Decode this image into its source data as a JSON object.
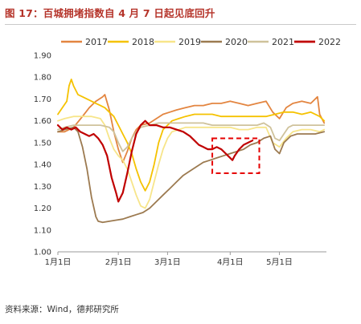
{
  "figure": {
    "title": "图 17：百城拥堵指数自 4 月 7 日起见底回升",
    "source": "资料来源：Wind，德邦研究所"
  },
  "colors": {
    "title": "#b5342a",
    "highlight_box": "#e60000"
  },
  "chart_data": {
    "type": "line",
    "title": "",
    "xlabel": "",
    "ylabel": "",
    "ylim": [
      1.0,
      1.9
    ],
    "xlim": [
      1,
      121
    ],
    "y_ticks": [
      "1.00",
      "1.10",
      "1.20",
      "1.30",
      "1.40",
      "1.50",
      "1.60",
      "1.70",
      "1.80",
      "1.90"
    ],
    "x_ticks": [
      {
        "label": "1月1日",
        "x": 1
      },
      {
        "label": "2月1日",
        "x": 28
      },
      {
        "label": "3月1日",
        "x": 50
      },
      {
        "label": "4月1日",
        "x": 78
      },
      {
        "label": "5月1日",
        "x": 100
      }
    ],
    "legend": {
      "position": "top"
    },
    "grid": false,
    "highlight_region": {
      "x": [
        70,
        91
      ],
      "y": [
        1.36,
        1.52
      ]
    },
    "series": [
      {
        "name": "2017",
        "color": "#e38540",
        "width": 1.8,
        "points": [
          [
            1,
            1.55
          ],
          [
            4,
            1.55
          ],
          [
            8,
            1.57
          ],
          [
            12,
            1.62
          ],
          [
            15,
            1.66
          ],
          [
            18,
            1.69
          ],
          [
            21,
            1.71
          ],
          [
            22,
            1.72
          ],
          [
            24,
            1.65
          ],
          [
            26,
            1.55
          ],
          [
            28,
            1.47
          ],
          [
            30,
            1.41
          ],
          [
            32,
            1.46
          ],
          [
            34,
            1.52
          ],
          [
            36,
            1.56
          ],
          [
            38,
            1.58
          ],
          [
            42,
            1.59
          ],
          [
            45,
            1.61
          ],
          [
            48,
            1.63
          ],
          [
            51,
            1.64
          ],
          [
            54,
            1.65
          ],
          [
            58,
            1.66
          ],
          [
            62,
            1.67
          ],
          [
            66,
            1.67
          ],
          [
            70,
            1.68
          ],
          [
            74,
            1.68
          ],
          [
            78,
            1.69
          ],
          [
            82,
            1.68
          ],
          [
            86,
            1.67
          ],
          [
            90,
            1.68
          ],
          [
            94,
            1.69
          ],
          [
            97,
            1.64
          ],
          [
            100,
            1.61
          ],
          [
            103,
            1.66
          ],
          [
            106,
            1.68
          ],
          [
            110,
            1.69
          ],
          [
            114,
            1.68
          ],
          [
            117,
            1.71
          ],
          [
            118,
            1.63
          ],
          [
            120,
            1.59
          ]
        ]
      },
      {
        "name": "2018",
        "color": "#f5c200",
        "width": 1.8,
        "points": [
          [
            1,
            1.63
          ],
          [
            3,
            1.66
          ],
          [
            5,
            1.69
          ],
          [
            6,
            1.76
          ],
          [
            7,
            1.79
          ],
          [
            8,
            1.76
          ],
          [
            10,
            1.72
          ],
          [
            12,
            1.71
          ],
          [
            14,
            1.7
          ],
          [
            16,
            1.69
          ],
          [
            18,
            1.68
          ],
          [
            20,
            1.67
          ],
          [
            22,
            1.66
          ],
          [
            24,
            1.64
          ],
          [
            26,
            1.62
          ],
          [
            28,
            1.58
          ],
          [
            30,
            1.54
          ],
          [
            32,
            1.5
          ],
          [
            34,
            1.45
          ],
          [
            36,
            1.38
          ],
          [
            38,
            1.32
          ],
          [
            40,
            1.28
          ],
          [
            42,
            1.32
          ],
          [
            44,
            1.4
          ],
          [
            46,
            1.5
          ],
          [
            48,
            1.56
          ],
          [
            50,
            1.58
          ],
          [
            52,
            1.6
          ],
          [
            55,
            1.61
          ],
          [
            58,
            1.62
          ],
          [
            62,
            1.63
          ],
          [
            66,
            1.63
          ],
          [
            70,
            1.63
          ],
          [
            74,
            1.62
          ],
          [
            78,
            1.62
          ],
          [
            82,
            1.62
          ],
          [
            86,
            1.62
          ],
          [
            90,
            1.62
          ],
          [
            94,
            1.62
          ],
          [
            98,
            1.63
          ],
          [
            102,
            1.64
          ],
          [
            106,
            1.64
          ],
          [
            110,
            1.63
          ],
          [
            114,
            1.64
          ],
          [
            118,
            1.62
          ],
          [
            120,
            1.6
          ]
        ]
      },
      {
        "name": "2019",
        "color": "#f7e58a",
        "width": 1.8,
        "points": [
          [
            1,
            1.6
          ],
          [
            4,
            1.61
          ],
          [
            8,
            1.62
          ],
          [
            12,
            1.62
          ],
          [
            16,
            1.62
          ],
          [
            20,
            1.61
          ],
          [
            22,
            1.58
          ],
          [
            24,
            1.52
          ],
          [
            26,
            1.47
          ],
          [
            28,
            1.44
          ],
          [
            30,
            1.42
          ],
          [
            32,
            1.38
          ],
          [
            34,
            1.32
          ],
          [
            36,
            1.26
          ],
          [
            38,
            1.21
          ],
          [
            40,
            1.2
          ],
          [
            42,
            1.24
          ],
          [
            44,
            1.32
          ],
          [
            46,
            1.4
          ],
          [
            48,
            1.47
          ],
          [
            50,
            1.52
          ],
          [
            52,
            1.55
          ],
          [
            55,
            1.56
          ],
          [
            58,
            1.57
          ],
          [
            62,
            1.57
          ],
          [
            66,
            1.57
          ],
          [
            70,
            1.57
          ],
          [
            74,
            1.57
          ],
          [
            78,
            1.57
          ],
          [
            82,
            1.56
          ],
          [
            86,
            1.56
          ],
          [
            90,
            1.57
          ],
          [
            94,
            1.57
          ],
          [
            97,
            1.5
          ],
          [
            100,
            1.48
          ],
          [
            103,
            1.52
          ],
          [
            106,
            1.55
          ],
          [
            110,
            1.56
          ],
          [
            114,
            1.56
          ],
          [
            118,
            1.55
          ],
          [
            120,
            1.56
          ]
        ]
      },
      {
        "name": "2020",
        "color": "#9c7a50",
        "width": 1.8,
        "points": [
          [
            1,
            1.55
          ],
          [
            4,
            1.56
          ],
          [
            8,
            1.57
          ],
          [
            10,
            1.55
          ],
          [
            12,
            1.48
          ],
          [
            14,
            1.38
          ],
          [
            16,
            1.25
          ],
          [
            18,
            1.16
          ],
          [
            19,
            1.14
          ],
          [
            21,
            1.135
          ],
          [
            24,
            1.14
          ],
          [
            27,
            1.145
          ],
          [
            30,
            1.15
          ],
          [
            33,
            1.16
          ],
          [
            36,
            1.17
          ],
          [
            39,
            1.18
          ],
          [
            42,
            1.2
          ],
          [
            45,
            1.23
          ],
          [
            48,
            1.26
          ],
          [
            51,
            1.29
          ],
          [
            54,
            1.32
          ],
          [
            57,
            1.35
          ],
          [
            60,
            1.37
          ],
          [
            63,
            1.39
          ],
          [
            66,
            1.41
          ],
          [
            69,
            1.42
          ],
          [
            72,
            1.43
          ],
          [
            75,
            1.44
          ],
          [
            78,
            1.45
          ],
          [
            81,
            1.46
          ],
          [
            84,
            1.47
          ],
          [
            87,
            1.49
          ],
          [
            90,
            1.5
          ],
          [
            93,
            1.52
          ],
          [
            96,
            1.53
          ],
          [
            98,
            1.47
          ],
          [
            100,
            1.45
          ],
          [
            102,
            1.5
          ],
          [
            105,
            1.53
          ],
          [
            108,
            1.54
          ],
          [
            112,
            1.54
          ],
          [
            116,
            1.54
          ],
          [
            120,
            1.55
          ]
        ]
      },
      {
        "name": "2021",
        "color": "#cfc29b",
        "width": 1.8,
        "points": [
          [
            1,
            1.56
          ],
          [
            4,
            1.57
          ],
          [
            8,
            1.58
          ],
          [
            12,
            1.58
          ],
          [
            16,
            1.58
          ],
          [
            20,
            1.58
          ],
          [
            24,
            1.57
          ],
          [
            26,
            1.55
          ],
          [
            28,
            1.5
          ],
          [
            30,
            1.46
          ],
          [
            32,
            1.48
          ],
          [
            34,
            1.52
          ],
          [
            36,
            1.55
          ],
          [
            38,
            1.57
          ],
          [
            42,
            1.58
          ],
          [
            46,
            1.59
          ],
          [
            50,
            1.59
          ],
          [
            54,
            1.59
          ],
          [
            58,
            1.59
          ],
          [
            62,
            1.59
          ],
          [
            66,
            1.59
          ],
          [
            70,
            1.58
          ],
          [
            74,
            1.58
          ],
          [
            78,
            1.58
          ],
          [
            82,
            1.58
          ],
          [
            86,
            1.58
          ],
          [
            90,
            1.58
          ],
          [
            93,
            1.59
          ],
          [
            96,
            1.57
          ],
          [
            98,
            1.52
          ],
          [
            100,
            1.51
          ],
          [
            102,
            1.54
          ],
          [
            104,
            1.57
          ],
          [
            106,
            1.58
          ],
          [
            110,
            1.58
          ],
          [
            114,
            1.58
          ],
          [
            118,
            1.58
          ],
          [
            120,
            1.58
          ]
        ]
      },
      {
        "name": "2022",
        "color": "#c00000",
        "width": 2.2,
        "points": [
          [
            1,
            1.58
          ],
          [
            3,
            1.56
          ],
          [
            5,
            1.57
          ],
          [
            7,
            1.56
          ],
          [
            9,
            1.57
          ],
          [
            11,
            1.55
          ],
          [
            13,
            1.54
          ],
          [
            15,
            1.53
          ],
          [
            17,
            1.54
          ],
          [
            19,
            1.52
          ],
          [
            21,
            1.49
          ],
          [
            23,
            1.44
          ],
          [
            25,
            1.34
          ],
          [
            27,
            1.27
          ],
          [
            28,
            1.23
          ],
          [
            30,
            1.27
          ],
          [
            32,
            1.36
          ],
          [
            34,
            1.46
          ],
          [
            36,
            1.54
          ],
          [
            38,
            1.58
          ],
          [
            40,
            1.6
          ],
          [
            42,
            1.58
          ],
          [
            45,
            1.58
          ],
          [
            48,
            1.57
          ],
          [
            51,
            1.57
          ],
          [
            54,
            1.56
          ],
          [
            57,
            1.55
          ],
          [
            60,
            1.53
          ],
          [
            62,
            1.51
          ],
          [
            64,
            1.49
          ],
          [
            66,
            1.48
          ],
          [
            68,
            1.47
          ],
          [
            70,
            1.47
          ],
          [
            72,
            1.48
          ],
          [
            74,
            1.47
          ],
          [
            76,
            1.45
          ],
          [
            77,
            1.44
          ],
          [
            78,
            1.43
          ],
          [
            79,
            1.42
          ],
          [
            80,
            1.44
          ],
          [
            82,
            1.47
          ],
          [
            84,
            1.49
          ],
          [
            86,
            1.5
          ],
          [
            88,
            1.51
          ]
        ]
      }
    ]
  }
}
